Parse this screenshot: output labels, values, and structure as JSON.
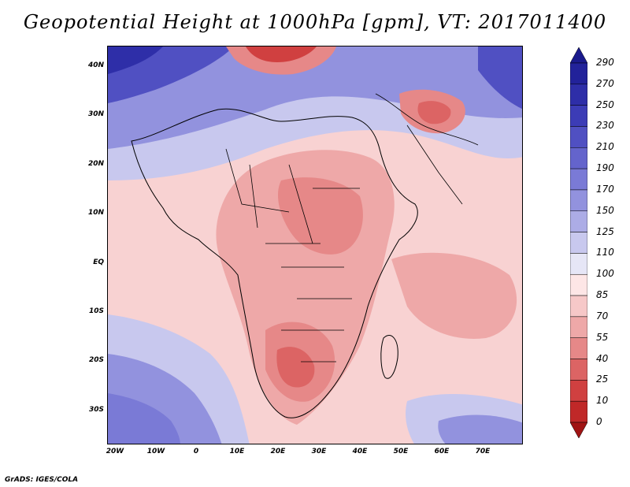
{
  "title": "Geopotential Height at 1000hPa [gpm], VT: 2017011400",
  "latitude_labels": [
    "40N",
    "30N",
    "20N",
    "10N",
    "EQ",
    "10S",
    "20S",
    "30S"
  ],
  "longitude_labels": [
    "20W",
    "10W",
    "0",
    "10E",
    "20E",
    "30E",
    "40E",
    "50E",
    "60E",
    "70E"
  ],
  "colorbar": {
    "labels": [
      "290",
      "270",
      "250",
      "230",
      "210",
      "190",
      "170",
      "150",
      "125",
      "110",
      "100",
      "85",
      "70",
      "55",
      "40",
      "25",
      "10",
      "0"
    ],
    "colors": [
      "#1a1a8c",
      "#22229a",
      "#2e2ea8",
      "#3c3cb6",
      "#5050c2",
      "#6464cc",
      "#7a7ad6",
      "#9292de",
      "#acace6",
      "#c8c8ee",
      "#e6e6f6",
      "#fde6e6",
      "#f6c8c8",
      "#eea8a8",
      "#e68888",
      "#dc6464",
      "#d04040",
      "#c02828",
      "#a01414"
    ]
  },
  "credit": "GrADS: IGES/COLA"
}
